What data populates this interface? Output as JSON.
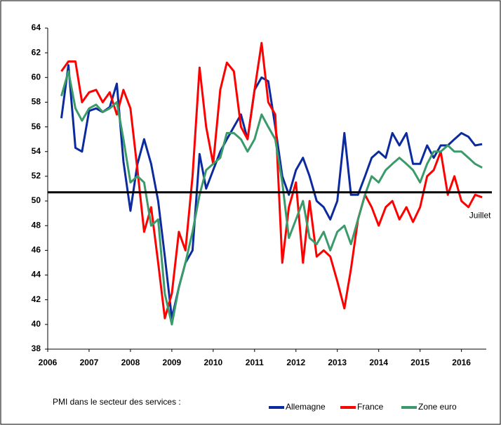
{
  "chart_data": {
    "type": "line",
    "x": [
      2006.33,
      2006.5,
      2006.67,
      2006.83,
      2007,
      2007.17,
      2007.33,
      2007.5,
      2007.67,
      2007.83,
      2008,
      2008.17,
      2008.33,
      2008.5,
      2008.67,
      2008.83,
      2009,
      2009.17,
      2009.33,
      2009.5,
      2009.67,
      2009.83,
      2010,
      2010.17,
      2010.33,
      2010.5,
      2010.67,
      2010.83,
      2011,
      2011.17,
      2011.33,
      2011.5,
      2011.67,
      2011.83,
      2012,
      2012.17,
      2012.33,
      2012.5,
      2012.67,
      2012.83,
      2013,
      2013.17,
      2013.33,
      2013.5,
      2013.67,
      2013.83,
      2014,
      2014.17,
      2014.33,
      2014.5,
      2014.67,
      2014.83,
      2015,
      2015.17,
      2015.33,
      2015.5,
      2015.67,
      2015.83,
      2016,
      2016.17,
      2016.33,
      2016.5
    ],
    "series": [
      {
        "name": "Allemagne",
        "color": "#0a2a9e",
        "values": [
          56.7,
          61,
          54.3,
          54,
          57.3,
          57.5,
          57.2,
          57.6,
          59.5,
          53.2,
          49.2,
          53,
          55,
          53,
          50,
          45.5,
          40.5,
          43,
          45,
          46,
          53.8,
          51,
          52.5,
          54,
          55,
          56,
          57,
          55,
          59,
          60,
          59.7,
          56,
          52,
          50.5,
          52.5,
          53.5,
          52,
          50,
          49.5,
          48.5,
          50,
          55.5,
          50.5,
          50.5,
          52,
          53.5,
          54,
          53.5,
          55.5,
          54.5,
          55.5,
          53,
          53,
          54.5,
          53.5,
          54.5,
          54.5,
          55,
          55.5,
          55.2,
          54.5,
          54.6
        ]
      },
      {
        "name": "France",
        "color": "#ff0000",
        "values": [
          60.5,
          61.3,
          61.3,
          58,
          58.8,
          59,
          58,
          58.8,
          57,
          59,
          57.5,
          52.5,
          47.5,
          49.5,
          45,
          40.5,
          42.5,
          47.5,
          46,
          52,
          60.8,
          56,
          53,
          59,
          61.2,
          60.5,
          56,
          55,
          59,
          62.8,
          58,
          57,
          45,
          49.5,
          51.5,
          45,
          50,
          45.5,
          46,
          45.5,
          43.5,
          41.3,
          44.5,
          48.5,
          50.5,
          49.5,
          48,
          49.5,
          50,
          48.5,
          49.5,
          48.3,
          49.5,
          52,
          52.5,
          54,
          50.5,
          52,
          50,
          49.5,
          50.5,
          50.3
        ]
      },
      {
        "name": "Zone euro",
        "color": "#3a9a6a",
        "values": [
          58.5,
          60.5,
          57.5,
          56.5,
          57.5,
          57.8,
          57.2,
          57.5,
          58,
          55,
          51.5,
          52,
          51.5,
          48,
          48.5,
          42.5,
          40,
          43,
          45,
          47.5,
          50.5,
          52.5,
          53,
          53.5,
          55.5,
          55.5,
          55,
          54,
          55,
          57,
          56,
          55,
          51.5,
          47,
          48.5,
          50,
          47,
          46.5,
          47.5,
          46,
          47.5,
          48,
          46.5,
          48.5,
          50.5,
          52,
          51.5,
          52.5,
          53,
          53.5,
          53,
          52.5,
          51.5,
          53,
          54,
          54,
          54.5,
          54,
          54,
          53.5,
          53,
          52.7
        ]
      }
    ],
    "xlim": [
      2006,
      2016.6
    ],
    "xticks": [
      2006,
      2007,
      2008,
      2009,
      2010,
      2011,
      2012,
      2013,
      2014,
      2015,
      2016
    ],
    "ylim": [
      38,
      64
    ],
    "yticks": [
      38,
      40,
      42,
      44,
      46,
      48,
      50,
      52,
      54,
      56,
      58,
      60,
      62,
      64
    ],
    "hline": 50.7,
    "annotations": [
      {
        "text": "Juillet",
        "x": 2016.45,
        "y": 48.8
      }
    ],
    "legend_title": "PMI dans le secteur des services :"
  }
}
